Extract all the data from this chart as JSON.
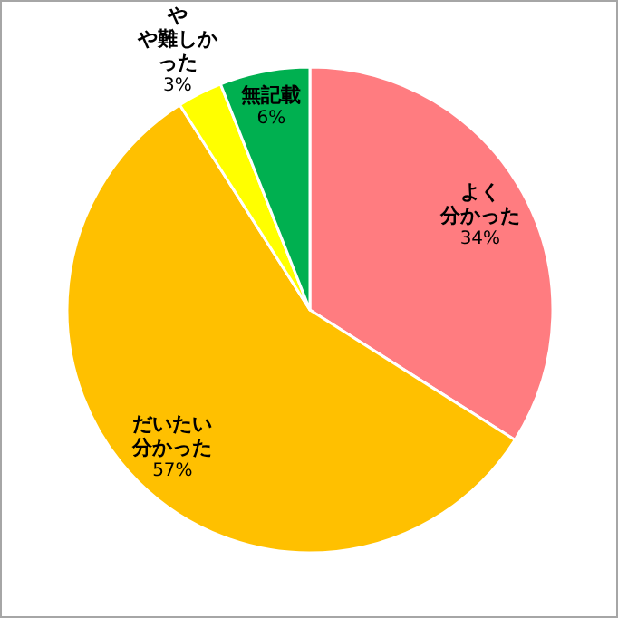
{
  "chart_data": {
    "type": "pie",
    "categories": [
      "よく分かった",
      "だいたい分かった",
      "やや難しかった",
      "無記載"
    ],
    "values": [
      34,
      57,
      3,
      6
    ],
    "colors": [
      "#ff7c80",
      "#ffc000",
      "#ffff00",
      "#00b050"
    ],
    "value_labels": [
      "34%",
      "57%",
      "3%",
      "6%"
    ]
  }
}
